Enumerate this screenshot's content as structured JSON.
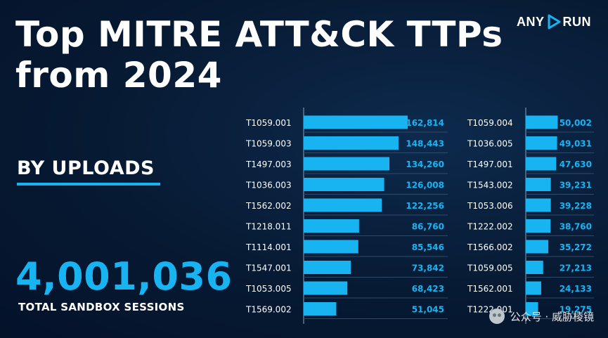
{
  "title": "Top MITRE ATT&CK TTPs from 2024",
  "brand": {
    "left": "ANY",
    "right": "RUN"
  },
  "section_label": "BY UPLOADS",
  "total": {
    "value": "4,001,036",
    "label": "TOTAL SANDBOX SESSIONS"
  },
  "watermark": "公众号 · 威胁棱镜",
  "colors": {
    "accent": "#18b4f2",
    "background": "#071a33",
    "text": "#ffffff"
  },
  "chart_data": [
    {
      "type": "bar",
      "orientation": "horizontal",
      "categories": [
        "T1059.001",
        "T1059.003",
        "T1497.003",
        "T1036.003",
        "T1562.002",
        "T1218.011",
        "T1114.001",
        "T1547.001",
        "T1053.005",
        "T1569.002"
      ],
      "values": [
        162814,
        148443,
        134260,
        126008,
        122256,
        86760,
        85546,
        73842,
        68423,
        51045
      ],
      "value_labels": [
        "162,814",
        "148,443",
        "134,260",
        "126,008",
        "122,256",
        "86,760",
        "85,546",
        "73,842",
        "68,423",
        "51,045"
      ]
    },
    {
      "type": "bar",
      "orientation": "horizontal",
      "categories": [
        "T1059.004",
        "T1036.005",
        "T1497.001",
        "T1543.002",
        "T1053.006",
        "T1222.002",
        "T1566.002",
        "T1059.005",
        "T1562.001",
        "T1222.001"
      ],
      "values": [
        50002,
        49031,
        47630,
        39231,
        39228,
        38760,
        35272,
        27213,
        24133,
        19275
      ],
      "value_labels": [
        "50,002",
        "49,031",
        "47,630",
        "39,231",
        "39,228",
        "38,760",
        "35,272",
        "27,213",
        "24,133",
        "19,275"
      ]
    }
  ]
}
